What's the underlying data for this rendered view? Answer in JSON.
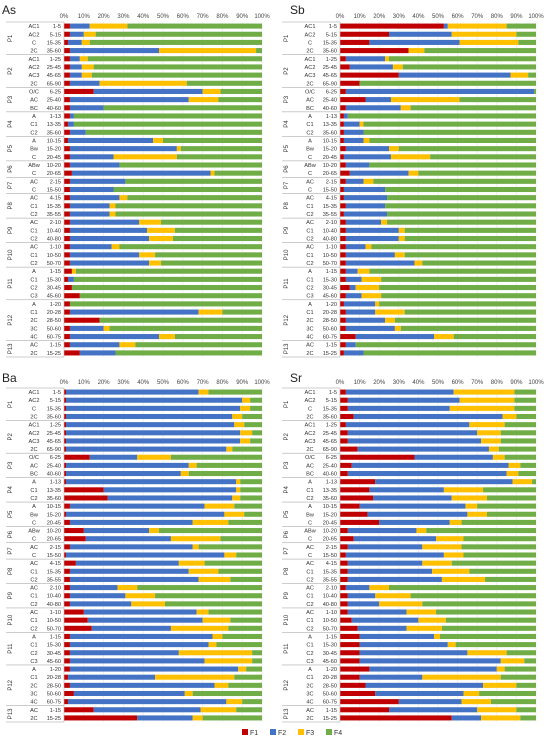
{
  "colors": {
    "F1": "#c00000",
    "F2": "#4472c4",
    "F3": "#ffc000",
    "F4": "#70ad47"
  },
  "legend": [
    "F1",
    "F2",
    "F3",
    "F4"
  ],
  "axis_ticks": [
    "0%",
    "10%",
    "20%",
    "30%",
    "40%",
    "50%",
    "60%",
    "70%",
    "80%",
    "90%",
    "100%"
  ],
  "profiles": [
    "P1",
    "P2",
    "P3",
    "P4",
    "P5",
    "P6",
    "P7",
    "P8",
    "P9",
    "P10",
    "P11",
    "P12",
    "P13"
  ],
  "rows": [
    {
      "profile": "P1",
      "horizon": "AC1",
      "depth": "1-5"
    },
    {
      "profile": "P1",
      "horizon": "AC2",
      "depth": "5-15"
    },
    {
      "profile": "P1",
      "horizon": "C",
      "depth": "15-35"
    },
    {
      "profile": "P1",
      "horizon": "2C",
      "depth": "35-60"
    },
    {
      "profile": "P2",
      "horizon": "AC1",
      "depth": "1-25"
    },
    {
      "profile": "P2",
      "horizon": "AC2",
      "depth": "25-45"
    },
    {
      "profile": "P2",
      "horizon": "AC3",
      "depth": "45-65"
    },
    {
      "profile": "P2",
      "horizon": "2C",
      "depth": "65-90"
    },
    {
      "profile": "P3",
      "horizon": "O/C",
      "depth": "6-25"
    },
    {
      "profile": "P3",
      "horizon": "AC",
      "depth": "25-40"
    },
    {
      "profile": "P3",
      "horizon": "BC",
      "depth": "40-60"
    },
    {
      "profile": "P4",
      "horizon": "A",
      "depth": "1-13"
    },
    {
      "profile": "P4",
      "horizon": "C1",
      "depth": "13-35"
    },
    {
      "profile": "P4",
      "horizon": "C2",
      "depth": "35-60"
    },
    {
      "profile": "P5",
      "horizon": "A",
      "depth": "10-15"
    },
    {
      "profile": "P5",
      "horizon": "Bw",
      "depth": "15-20"
    },
    {
      "profile": "P5",
      "horizon": "C",
      "depth": "20-45"
    },
    {
      "profile": "P6",
      "horizon": "ABw",
      "depth": "10-20"
    },
    {
      "profile": "P6",
      "horizon": "C",
      "depth": "20-65"
    },
    {
      "profile": "P7",
      "horizon": "AC",
      "depth": "2-15"
    },
    {
      "profile": "P7",
      "horizon": "C",
      "depth": "15-50"
    },
    {
      "profile": "P8",
      "horizon": "AC",
      "depth": "4-15"
    },
    {
      "profile": "P8",
      "horizon": "C1",
      "depth": "15-35"
    },
    {
      "profile": "P8",
      "horizon": "C2",
      "depth": "35-55"
    },
    {
      "profile": "P9",
      "horizon": "AC",
      "depth": "2-10"
    },
    {
      "profile": "P9",
      "horizon": "C1",
      "depth": "10-40"
    },
    {
      "profile": "P9",
      "horizon": "C2",
      "depth": "40-80"
    },
    {
      "profile": "P10",
      "horizon": "AC",
      "depth": "1-10"
    },
    {
      "profile": "P10",
      "horizon": "C1",
      "depth": "10-50"
    },
    {
      "profile": "P10",
      "horizon": "C2",
      "depth": "50-70"
    },
    {
      "profile": "P11",
      "horizon": "A",
      "depth": "1-15"
    },
    {
      "profile": "P11",
      "horizon": "C1",
      "depth": "15-30"
    },
    {
      "profile": "P11",
      "horizon": "C2",
      "depth": "30-45"
    },
    {
      "profile": "P11",
      "horizon": "C3",
      "depth": "45-60"
    },
    {
      "profile": "P12",
      "horizon": "A",
      "depth": "1-20"
    },
    {
      "profile": "P12",
      "horizon": "C1",
      "depth": "20-28"
    },
    {
      "profile": "P12",
      "horizon": "2C",
      "depth": "28-50"
    },
    {
      "profile": "P12",
      "horizon": "3C",
      "depth": "50-60"
    },
    {
      "profile": "P12",
      "horizon": "4C",
      "depth": "60-75"
    },
    {
      "profile": "P13",
      "horizon": "AC",
      "depth": "1-15"
    },
    {
      "profile": "P13",
      "horizon": "2C",
      "depth": "15-25"
    }
  ],
  "chart_data": [
    {
      "type": "bar",
      "title": "As",
      "orientation": "horizontal-stacked-percent",
      "xlim": [
        0,
        100
      ],
      "series_names": [
        "F1",
        "F2",
        "F3",
        "F4"
      ],
      "values": [
        [
          3,
          10,
          19,
          68
        ],
        [
          3,
          7,
          6,
          84
        ],
        [
          2,
          7,
          4,
          87
        ],
        [
          3,
          45,
          49,
          3
        ],
        [
          3,
          5,
          4,
          88
        ],
        [
          3,
          6,
          6,
          85
        ],
        [
          3,
          6,
          5,
          86
        ],
        [
          3,
          15,
          44,
          38
        ],
        [
          15,
          55,
          9,
          21
        ],
        [
          3,
          60,
          15,
          22
        ],
        [
          3,
          17,
          0,
          80
        ],
        [
          3,
          2,
          0,
          95
        ],
        [
          2,
          3,
          0,
          95
        ],
        [
          3,
          8,
          0,
          89
        ],
        [
          2,
          43,
          5,
          50
        ],
        [
          3,
          54,
          2,
          41
        ],
        [
          3,
          22,
          32,
          43
        ],
        [
          3,
          25,
          0,
          72
        ],
        [
          4,
          70,
          2,
          24
        ],
        [
          3,
          28,
          0,
          69
        ],
        [
          3,
          22,
          0,
          75
        ],
        [
          3,
          25,
          4,
          68
        ],
        [
          3,
          20,
          3,
          74
        ],
        [
          3,
          20,
          3,
          74
        ],
        [
          3,
          35,
          11,
          51
        ],
        [
          3,
          39,
          14,
          44
        ],
        [
          3,
          40,
          12,
          45
        ],
        [
          3,
          21,
          4,
          72
        ],
        [
          3,
          35,
          8,
          54
        ],
        [
          3,
          40,
          6,
          51
        ],
        [
          4,
          0,
          2,
          94
        ],
        [
          2,
          3,
          0,
          95
        ],
        [
          4,
          0,
          0,
          96
        ],
        [
          8,
          0,
          0,
          92
        ],
        [
          3,
          0,
          0,
          97
        ],
        [
          3,
          65,
          12,
          20
        ],
        [
          18,
          0,
          0,
          82
        ],
        [
          3,
          17,
          3,
          77
        ],
        [
          3,
          45,
          8,
          44
        ],
        [
          3,
          25,
          8,
          64
        ],
        [
          8,
          18,
          0,
          74
        ]
      ]
    },
    {
      "type": "bar",
      "title": "Sb",
      "orientation": "horizontal-stacked-percent",
      "xlim": [
        0,
        100
      ],
      "series_names": [
        "F1",
        "F2",
        "F3",
        "F4"
      ],
      "values": [
        [
          53,
          2,
          30,
          15
        ],
        [
          25,
          32,
          33,
          10
        ],
        [
          15,
          46,
          30,
          9
        ],
        [
          35,
          0,
          8,
          57
        ],
        [
          3,
          20,
          2,
          75
        ],
        [
          5,
          22,
          5,
          68
        ],
        [
          30,
          57,
          9,
          4
        ],
        [
          10,
          0,
          0,
          90
        ],
        [
          3,
          96,
          0,
          1
        ],
        [
          13,
          13,
          35,
          39
        ],
        [
          3,
          28,
          5,
          64
        ],
        [
          2,
          2,
          0,
          96
        ],
        [
          2,
          8,
          2,
          88
        ],
        [
          2,
          10,
          0,
          88
        ],
        [
          2,
          10,
          3,
          85
        ],
        [
          3,
          22,
          5,
          70
        ],
        [
          2,
          24,
          20,
          54
        ],
        [
          3,
          12,
          0,
          85
        ],
        [
          5,
          30,
          5,
          60
        ],
        [
          3,
          9,
          5,
          83
        ],
        [
          2,
          21,
          0,
          77
        ],
        [
          2,
          22,
          0,
          76
        ],
        [
          3,
          20,
          0,
          77
        ],
        [
          2,
          22,
          0,
          76
        ],
        [
          3,
          18,
          3,
          76
        ],
        [
          3,
          27,
          3,
          67
        ],
        [
          3,
          27,
          3,
          67
        ],
        [
          3,
          10,
          3,
          84
        ],
        [
          3,
          25,
          5,
          67
        ],
        [
          3,
          35,
          4,
          58
        ],
        [
          3,
          6,
          6,
          85
        ],
        [
          3,
          8,
          10,
          79
        ],
        [
          5,
          3,
          12,
          80
        ],
        [
          3,
          8,
          10,
          79
        ],
        [
          2,
          16,
          2,
          80
        ],
        [
          3,
          15,
          15,
          67
        ],
        [
          3,
          20,
          5,
          72
        ],
        [
          3,
          25,
          3,
          69
        ],
        [
          8,
          40,
          10,
          42
        ],
        [
          3,
          5,
          0,
          92
        ],
        [
          2,
          10,
          0,
          88
        ]
      ]
    },
    {
      "type": "bar",
      "title": "Ba",
      "orientation": "horizontal-stacked-percent",
      "xlim": [
        0,
        100
      ],
      "series_names": [
        "F1",
        "F2",
        "F3",
        "F4"
      ],
      "values": [
        [
          1,
          67,
          5,
          27
        ],
        [
          1,
          89,
          4,
          6
        ],
        [
          1,
          88,
          5,
          6
        ],
        [
          1,
          84,
          5,
          10
        ],
        [
          1,
          85,
          5,
          9
        ],
        [
          1,
          88,
          6,
          5
        ],
        [
          1,
          88,
          5,
          6
        ],
        [
          1,
          81,
          3,
          15
        ],
        [
          13,
          24,
          17,
          46
        ],
        [
          1,
          62,
          4,
          33
        ],
        [
          1,
          58,
          4,
          37
        ],
        [
          1,
          86,
          2,
          11
        ],
        [
          20,
          67,
          2,
          11
        ],
        [
          22,
          63,
          4,
          11
        ],
        [
          3,
          68,
          15,
          14
        ],
        [
          1,
          80,
          10,
          9
        ],
        [
          3,
          62,
          18,
          17
        ],
        [
          10,
          33,
          5,
          52
        ],
        [
          11,
          43,
          25,
          21
        ],
        [
          3,
          62,
          3,
          32
        ],
        [
          1,
          80,
          6,
          13
        ],
        [
          6,
          52,
          13,
          29
        ],
        [
          3,
          60,
          15,
          22
        ],
        [
          3,
          65,
          16,
          16
        ],
        [
          3,
          24,
          10,
          63
        ],
        [
          3,
          28,
          15,
          54
        ],
        [
          3,
          31,
          17,
          49
        ],
        [
          10,
          57,
          6,
          27
        ],
        [
          12,
          58,
          14,
          16
        ],
        [
          14,
          40,
          29,
          17
        ],
        [
          3,
          72,
          5,
          20
        ],
        [
          3,
          70,
          4,
          23
        ],
        [
          3,
          55,
          37,
          5
        ],
        [
          3,
          68,
          24,
          5
        ],
        [
          3,
          85,
          4,
          8
        ],
        [
          2,
          44,
          40,
          14
        ],
        [
          3,
          73,
          7,
          17
        ],
        [
          5,
          56,
          4,
          35
        ],
        [
          2,
          80,
          8,
          10
        ],
        [
          15,
          54,
          18,
          13
        ],
        [
          37,
          28,
          5,
          30
        ]
      ]
    },
    {
      "type": "bar",
      "title": "Sr",
      "orientation": "horizontal-stacked-percent",
      "xlim": [
        0,
        100
      ],
      "series_names": [
        "F1",
        "F2",
        "F3",
        "F4"
      ],
      "values": [
        [
          3,
          55,
          31,
          11
        ],
        [
          4,
          57,
          28,
          11
        ],
        [
          4,
          52,
          33,
          11
        ],
        [
          7,
          76,
          7,
          10
        ],
        [
          3,
          63,
          18,
          16
        ],
        [
          4,
          66,
          12,
          18
        ],
        [
          4,
          68,
          10,
          18
        ],
        [
          9,
          67,
          5,
          19
        ],
        [
          38,
          40,
          6,
          16
        ],
        [
          6,
          80,
          6,
          8
        ],
        [
          4,
          81,
          6,
          9
        ],
        [
          18,
          70,
          10,
          2
        ],
        [
          15,
          38,
          20,
          27
        ],
        [
          17,
          40,
          18,
          25
        ],
        [
          10,
          54,
          6,
          30
        ],
        [
          14,
          51,
          10,
          25
        ],
        [
          20,
          36,
          6,
          38
        ],
        [
          4,
          35,
          5,
          56
        ],
        [
          7,
          42,
          14,
          37
        ],
        [
          4,
          38,
          20,
          38
        ],
        [
          3,
          50,
          10,
          37
        ],
        [
          4,
          38,
          15,
          43
        ],
        [
          4,
          43,
          19,
          34
        ],
        [
          4,
          48,
          22,
          26
        ],
        [
          3,
          12,
          10,
          75
        ],
        [
          4,
          14,
          18,
          64
        ],
        [
          4,
          16,
          22,
          58
        ],
        [
          4,
          30,
          15,
          51
        ],
        [
          6,
          34,
          14,
          46
        ],
        [
          9,
          25,
          18,
          48
        ],
        [
          10,
          38,
          3,
          49
        ],
        [
          10,
          45,
          4,
          41
        ],
        [
          10,
          55,
          20,
          15
        ],
        [
          10,
          72,
          12,
          6
        ],
        [
          15,
          65,
          4,
          16
        ],
        [
          10,
          32,
          40,
          18
        ],
        [
          13,
          60,
          17,
          10
        ],
        [
          18,
          45,
          8,
          29
        ],
        [
          30,
          32,
          15,
          23
        ],
        [
          25,
          45,
          20,
          10
        ],
        [
          57,
          15,
          20,
          8
        ]
      ]
    }
  ]
}
